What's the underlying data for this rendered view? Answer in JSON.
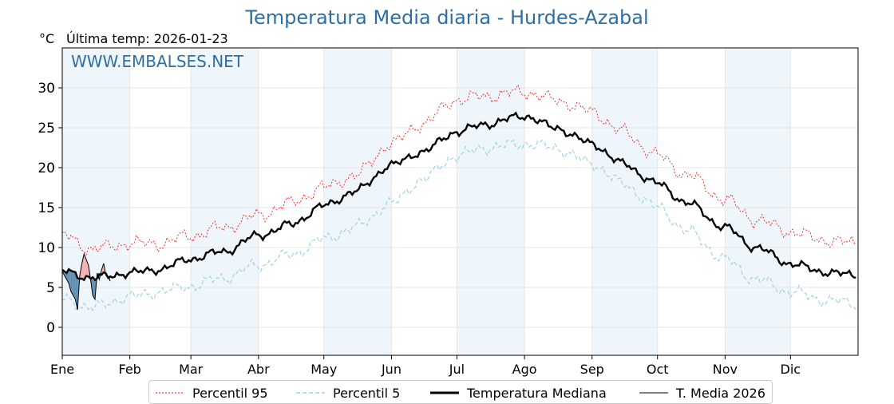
{
  "header": {
    "title": "Temperatura Media diaria - Hurdes-Azabal",
    "unit": "°C",
    "last_temp": "Última temp: 2026-01-23",
    "watermark": "WWW.EMBALSES.NET"
  },
  "colors": {
    "p95": "#ff0000",
    "p5": "#9fd4e2",
    "median": "#000000",
    "year": "#000000",
    "above_fill": "#f4a6a6",
    "below_fill": "#4a7ea8",
    "band": "#eef5fb",
    "title": "#2e6fa3"
  },
  "chart_data": {
    "type": "line",
    "title": "Temperatura Media diaria - Hurdes-Azabal",
    "ylabel": "°C",
    "xlabel": "",
    "x_axis": "día del año",
    "ylim": [
      -3.5,
      35
    ],
    "yticks": [
      0,
      5,
      10,
      15,
      20,
      25,
      30
    ],
    "months": [
      "Ene",
      "Feb",
      "Mar",
      "Abr",
      "May",
      "Jun",
      "Jul",
      "Ago",
      "Sep",
      "Oct",
      "Nov",
      "Dic"
    ],
    "grid": true,
    "legend_position": "bottom",
    "series_names": {
      "p95": "Percentil 95",
      "p5": "Percentil 5",
      "median": "Temperatura Mediana",
      "year": "T. Media 2026"
    },
    "p95": [
      [
        1,
        11.5
      ],
      [
        15,
        9.8
      ],
      [
        32,
        10.5
      ],
      [
        46,
        10.5
      ],
      [
        60,
        11.5
      ],
      [
        75,
        12.5
      ],
      [
        91,
        14.0
      ],
      [
        105,
        15.5
      ],
      [
        121,
        17.5
      ],
      [
        135,
        19.0
      ],
      [
        152,
        23.0
      ],
      [
        166,
        25.5
      ],
      [
        182,
        28.5
      ],
      [
        196,
        29.0
      ],
      [
        213,
        29.5
      ],
      [
        227,
        28.5
      ],
      [
        244,
        27.0
      ],
      [
        258,
        24.5
      ],
      [
        274,
        21.5
      ],
      [
        288,
        19.0
      ],
      [
        305,
        16.0
      ],
      [
        319,
        13.5
      ],
      [
        335,
        12.0
      ],
      [
        349,
        11.0
      ],
      [
        365,
        10.5
      ]
    ],
    "p5": [
      [
        1,
        3.5
      ],
      [
        15,
        2.5
      ],
      [
        32,
        3.8
      ],
      [
        46,
        4.5
      ],
      [
        60,
        5.2
      ],
      [
        75,
        6.2
      ],
      [
        91,
        7.8
      ],
      [
        105,
        9.0
      ],
      [
        121,
        11.0
      ],
      [
        135,
        12.5
      ],
      [
        152,
        15.5
      ],
      [
        166,
        18.5
      ],
      [
        182,
        21.5
      ],
      [
        196,
        22.5
      ],
      [
        213,
        23.0
      ],
      [
        227,
        22.5
      ],
      [
        244,
        20.5
      ],
      [
        258,
        18.0
      ],
      [
        274,
        15.0
      ],
      [
        288,
        12.0
      ],
      [
        305,
        8.5
      ],
      [
        319,
        6.0
      ],
      [
        335,
        4.5
      ],
      [
        349,
        3.5
      ],
      [
        365,
        3.0
      ]
    ],
    "median": [
      [
        1,
        7.0
      ],
      [
        15,
        6.2
      ],
      [
        32,
        6.8
      ],
      [
        46,
        7.3
      ],
      [
        60,
        8.6
      ],
      [
        75,
        9.5
      ],
      [
        91,
        11.5
      ],
      [
        105,
        12.8
      ],
      [
        121,
        15.2
      ],
      [
        135,
        17.0
      ],
      [
        152,
        20.3
      ],
      [
        166,
        22.0
      ],
      [
        182,
        24.5
      ],
      [
        196,
        25.5
      ],
      [
        213,
        26.5
      ],
      [
        227,
        25.0
      ],
      [
        244,
        23.0
      ],
      [
        258,
        20.5
      ],
      [
        274,
        18.0
      ],
      [
        288,
        15.5
      ],
      [
        305,
        12.5
      ],
      [
        319,
        10.0
      ],
      [
        335,
        8.0
      ],
      [
        349,
        7.0
      ],
      [
        365,
        6.5
      ]
    ],
    "year_2026": [
      [
        1,
        7.0
      ],
      [
        2,
        6.5
      ],
      [
        3,
        6.0
      ],
      [
        4,
        5.5
      ],
      [
        5,
        4.5
      ],
      [
        6,
        4.0
      ],
      [
        7,
        3.5
      ],
      [
        8,
        2.2
      ],
      [
        9,
        6.5
      ],
      [
        10,
        8.0
      ],
      [
        11,
        9.2
      ],
      [
        12,
        8.5
      ],
      [
        13,
        7.8
      ],
      [
        14,
        6.0
      ],
      [
        15,
        4.0
      ],
      [
        16,
        3.5
      ],
      [
        17,
        6.8
      ],
      [
        18,
        6.0
      ],
      [
        19,
        7.2
      ],
      [
        20,
        8.0
      ],
      [
        21,
        6.5
      ],
      [
        22,
        6.3
      ],
      [
        23,
        5.8
      ]
    ]
  },
  "legend": {
    "p95_label": "Percentil 95",
    "p5_label": "Percentil 5",
    "median_label": "Temperatura Mediana",
    "year_label": "T. Media 2026"
  }
}
